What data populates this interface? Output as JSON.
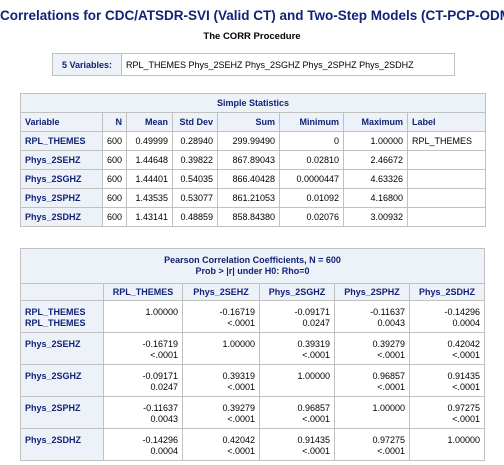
{
  "header": {
    "title": "Correlations for CDC/ATSDR-SVI (Valid CT) and Two-Step Models (CT-PCP-ODM)",
    "subtitle": "The CORR Procedure"
  },
  "variables": {
    "label": "5 Variables:",
    "value": "RPL_THEMES Phys_2SEHZ Phys_2SGHZ Phys_2SPHZ Phys_2SDHZ"
  },
  "simple_stats": {
    "title": "Simple Statistics",
    "columns": [
      "Variable",
      "N",
      "Mean",
      "Std Dev",
      "Sum",
      "Minimum",
      "Maximum",
      "Label"
    ],
    "rows": [
      [
        "RPL_THEMES",
        "600",
        "0.49999",
        "0.28940",
        "299.99490",
        "0",
        "1.00000",
        "RPL_THEMES"
      ],
      [
        "Phys_2SEHZ",
        "600",
        "1.44648",
        "0.39822",
        "867.89043",
        "0.02810",
        "2.46672"
      ],
      [
        "Phys_2SGHZ",
        "600",
        "1.44401",
        "0.54035",
        "866.40428",
        "0.0000447",
        "4.63326"
      ],
      [
        "Phys_2SPHZ",
        "600",
        "1.43535",
        "0.53077",
        "861.21053",
        "0.01092",
        "4.16800"
      ],
      [
        "Phys_2SDHZ",
        "600",
        "1.43141",
        "0.48859",
        "858.84380",
        "0.02076",
        "3.00932"
      ]
    ]
  },
  "pearson": {
    "title": "Pearson Correlation Coefficients, N = 600",
    "subtitle": "Prob > |r| under H0: Rho=0",
    "columns": [
      "RPL_THEMES",
      "Phys_2SEHZ",
      "Phys_2SGHZ",
      "Phys_2SPHZ",
      "Phys_2SDHZ"
    ],
    "rows": [
      {
        "names": [
          "RPL_THEMES",
          "RPL_THEMES"
        ],
        "cells": [
          {
            "r": "1.00000"
          },
          {
            "r": "-0.16719",
            "p": "<.0001"
          },
          {
            "r": "-0.09171",
            "p": "0.0247"
          },
          {
            "r": "-0.11637",
            "p": "0.0043"
          },
          {
            "r": "-0.14296",
            "p": "0.0004"
          }
        ]
      },
      {
        "names": [
          "Phys_2SEHZ"
        ],
        "cells": [
          {
            "r": "-0.16719",
            "p": "<.0001"
          },
          {
            "r": "1.00000"
          },
          {
            "r": "0.39319",
            "p": "<.0001"
          },
          {
            "r": "0.39279",
            "p": "<.0001"
          },
          {
            "r": "0.42042",
            "p": "<.0001"
          }
        ]
      },
      {
        "names": [
          "Phys_2SGHZ"
        ],
        "cells": [
          {
            "r": "-0.09171",
            "p": "0.0247"
          },
          {
            "r": "0.39319",
            "p": "<.0001"
          },
          {
            "r": "1.00000"
          },
          {
            "r": "0.96857",
            "p": "<.0001"
          },
          {
            "r": "0.91435",
            "p": "<.0001"
          }
        ]
      },
      {
        "names": [
          "Phys_2SPHZ"
        ],
        "cells": [
          {
            "r": "-0.11637",
            "p": "0.0043"
          },
          {
            "r": "0.39279",
            "p": "<.0001"
          },
          {
            "r": "0.96857",
            "p": "<.0001"
          },
          {
            "r": "1.00000"
          },
          {
            "r": "0.97275",
            "p": "<.0001"
          }
        ]
      },
      {
        "names": [
          "Phys_2SDHZ"
        ],
        "cells": [
          {
            "r": "-0.14296",
            "p": "0.0004"
          },
          {
            "r": "0.42042",
            "p": "<.0001"
          },
          {
            "r": "0.91435",
            "p": "<.0001"
          },
          {
            "r": "0.97275",
            "p": "<.0001"
          },
          {
            "r": "1.00000"
          }
        ]
      }
    ]
  }
}
